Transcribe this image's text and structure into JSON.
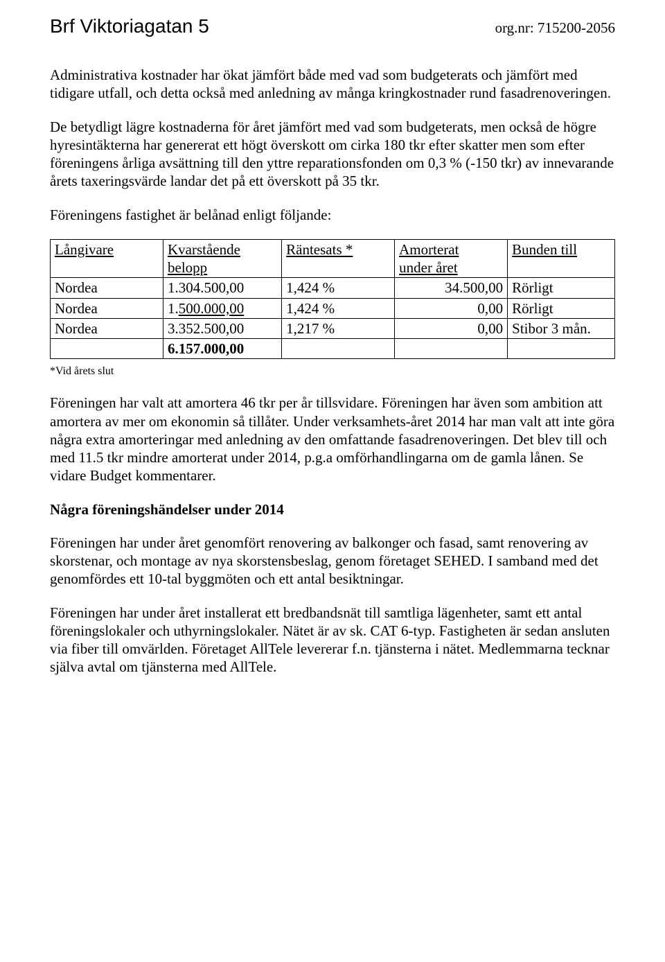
{
  "header": {
    "title": "Brf Viktoriagatan 5",
    "org_label": "org.nr: 715200-2056"
  },
  "paragraphs": {
    "p1": "Administrativa kostnader har ökat jämfört både med vad som budgeterats och jämfört med tidigare utfall, och detta också med anledning av många kringkostnader rund fasadrenoveringen.",
    "p2": "De betydligt lägre kostnaderna för året jämfört med vad som budgeterats, men också de högre hyresintäkterna har genererat ett högt överskott om cirka 180 tkr efter skatter men som efter föreningens årliga avsättning till den yttre reparationsfonden om 0,3 % (-150 tkr) av innevarande årets taxeringsvärde landar det på ett överskott på 35 tkr.",
    "p3": "Föreningens fastighet är belånad enligt följande:",
    "footnote": "*Vid årets slut",
    "p4": "Föreningen har valt att amortera 46 tkr per år tillsvidare.  Föreningen har även som ambition att amortera av mer om ekonomin så tillåter. Under verksamhets-året 2014 har man valt att inte göra några extra amorteringar med anledning av den omfattande fasadrenoveringen.  Det blev till och med 11.5 tkr mindre amorterat under 2014, p.g.a omförhandlingarna om de gamla lånen. Se vidare Budget kommentarer.",
    "section_head": "Några föreningshändelser under 2014",
    "p5": "Föreningen har under året genomfört renovering av balkonger och fasad, samt renovering av skorstenar, och montage av nya skorstensbeslag, genom företaget SEHED. I samband med det genomfördes ett 10-tal byggmöten och ett antal besiktningar.",
    "p6": "Föreningen har under året installerat ett bredbandsnät till samtliga lägenheter, samt ett antal föreningslokaler och uthyrningslokaler. Nätet är av sk. CAT 6-typ. Fastigheten är sedan ansluten via fiber till omvärlden. Företaget AllTele levererar f.n. tjänsterna i nätet. Medlemmarna tecknar själva avtal om tjänsterna med AllTele."
  },
  "table": {
    "headers": {
      "lender": "Långivare",
      "amount_l1": "Kvarstående",
      "amount_l2": "belopp",
      "rate": "Räntesats *",
      "amort_l1": "Amorterat",
      "amort_l2": "under året",
      "bound": "Bunden till"
    },
    "rows": [
      {
        "lender": "Nordea",
        "amount_pre": "1.304.",
        "amount_post": "500,00",
        "amount_underline": false,
        "rate": "1,424 %",
        "amort": "34.500,00",
        "bound": "Rörligt"
      },
      {
        "lender": "Nordea",
        "amount_pre": "1.",
        "amount_post": "500.000,00",
        "amount_underline": true,
        "rate": "1,424 %",
        "amort": "0,00",
        "bound": "Rörligt"
      },
      {
        "lender": "Nordea",
        "amount_pre": "3.352.",
        "amount_post": "500,00",
        "amount_underline": false,
        "rate": "1,217 %",
        "amort": "0,00",
        "bound": "Stibor 3 mån."
      }
    ],
    "total": "6.157.000,00"
  }
}
